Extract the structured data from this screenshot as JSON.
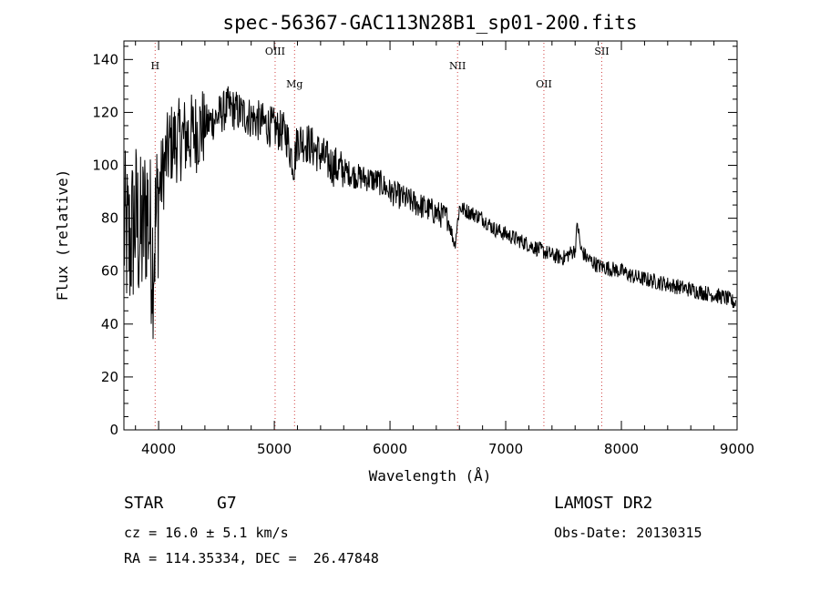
{
  "chart_data": {
    "type": "line",
    "title": "spec-56367-GAC113N28B1_sp01-200.fits",
    "xlabel": "Wavelength (Å)",
    "ylabel": "Flux (relative)",
    "xlim": [
      3700,
      9000
    ],
    "ylim": [
      0,
      147
    ],
    "xticks": [
      4000,
      5000,
      6000,
      7000,
      8000,
      9000
    ],
    "yticks": [
      0,
      20,
      40,
      60,
      80,
      100,
      120,
      140
    ],
    "grid": false,
    "series": [
      {
        "x": [
          3700,
          3750,
          3800,
          3850,
          3900,
          3950,
          4000,
          4050,
          4100,
          4200,
          4300,
          4400,
          4500,
          4600,
          4700,
          4800,
          4900,
          5000,
          5100,
          5170,
          5200,
          5300,
          5400,
          5500,
          5600,
          5700,
          5800,
          5900,
          6000,
          6100,
          6200,
          6300,
          6400,
          6500,
          6560,
          6600,
          6700,
          6800,
          6900,
          7000,
          7100,
          7200,
          7300,
          7400,
          7500,
          7600,
          7620,
          7650,
          7700,
          7800,
          7900,
          8000,
          8100,
          8200,
          8300,
          8400,
          8500,
          8600,
          8700,
          8800,
          8900,
          8980
        ],
        "y": [
          75,
          70,
          80,
          72,
          85,
          65,
          90,
          100,
          108,
          110,
          112,
          115,
          118,
          122,
          120,
          118,
          116,
          114,
          112,
          100,
          110,
          108,
          104,
          100,
          98,
          96,
          95,
          94,
          90,
          88,
          86,
          84,
          82,
          80,
          70,
          84,
          82,
          80,
          76,
          74,
          72,
          70,
          68,
          66,
          65,
          68,
          78,
          68,
          65,
          62,
          61,
          60,
          58,
          57,
          56,
          55,
          54,
          53,
          52,
          51,
          50,
          48
        ]
      }
    ],
    "lines": [
      {
        "label": "H",
        "x": 3970
      },
      {
        "label": "OIII",
        "x": 5007
      },
      {
        "label": "Mg",
        "x": 5175
      },
      {
        "label": "NII",
        "x": 6584
      },
      {
        "label": "OII",
        "x": 7330
      },
      {
        "label": "SII",
        "x": 7830
      }
    ]
  },
  "info": {
    "object_class": "STAR",
    "subclass": "G7",
    "survey": "LAMOST DR2",
    "cz": "cz = 16.0 ± 5.1 km/s",
    "obs_date": "Obs-Date: 20130315",
    "coords": "RA = 114.35334, DEC =  26.47848"
  }
}
